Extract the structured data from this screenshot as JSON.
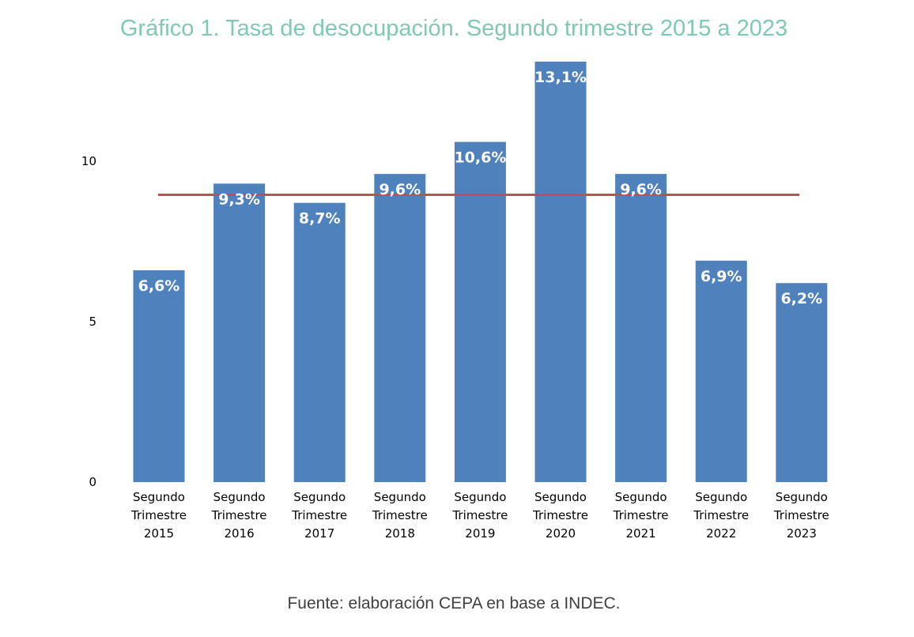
{
  "page": {
    "title": "Gráfico 1. Tasa de desocupación. Segundo trimestre 2015 a 2023",
    "source": "Fuente: elaboración CEPA en base a INDEC."
  },
  "colors": {
    "title": "#7fc8b4",
    "bar": "#4f81bd",
    "reference_line": "#c0504d",
    "data_label": "#ffffff",
    "source": "#404040"
  },
  "chart_data": {
    "type": "bar",
    "title": "Gráfico 1. Tasa de desocupación. Segundo trimestre 2015 a 2023",
    "xlabel": "",
    "ylabel": "",
    "categories": [
      [
        "Segundo",
        "Trimestre",
        "2015"
      ],
      [
        "Segundo",
        "Trimestre",
        "2016"
      ],
      [
        "Segundo",
        "Trimestre",
        "2017"
      ],
      [
        "Segundo",
        "Trimestre",
        "2018"
      ],
      [
        "Segundo",
        "Trimestre",
        "2019"
      ],
      [
        "Segundo",
        "Trimestre",
        "2020"
      ],
      [
        "Segundo",
        "Trimestre",
        "2021"
      ],
      [
        "Segundo",
        "Trimestre",
        "2022"
      ],
      [
        "Segundo",
        "Trimestre",
        "2023"
      ]
    ],
    "values": [
      6.6,
      9.3,
      8.7,
      9.6,
      10.6,
      13.1,
      9.6,
      6.9,
      6.2
    ],
    "data_labels": [
      "6,6%",
      "9,3%",
      "8,7%",
      "9,6%",
      "10,6%",
      "13,1%",
      "9,6%",
      "6,9%",
      "6,2%"
    ],
    "y_ticks": [
      0,
      5,
      10
    ],
    "ylim": [
      0,
      13.1
    ],
    "grid": false,
    "reference_line": {
      "value": 8.95,
      "label": ""
    }
  }
}
